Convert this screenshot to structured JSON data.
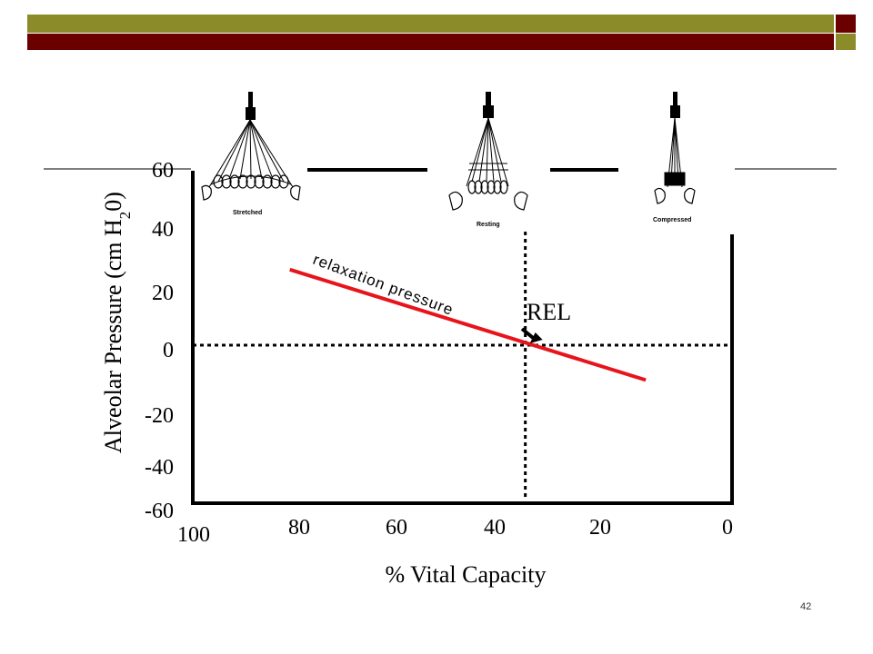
{
  "slide": {
    "page_number": "42",
    "header_colors": {
      "olive": "#8b8b2a",
      "maroon": "#6b0000"
    }
  },
  "illustrations": {
    "stretched_label": "Stretched",
    "resting_label": "Resting",
    "compressed_label": "Compressed"
  },
  "chart_data": {
    "type": "line",
    "xlabel": "% Vital Capacity",
    "ylabel_main": "Alveolar Pressure (cm H",
    "ylabel_sub": "2",
    "ylabel_end": "0)",
    "x_ticks": [
      "100",
      "80",
      "60",
      "40",
      "20",
      "0"
    ],
    "y_ticks": [
      "60",
      "40",
      "20",
      "0",
      "-20",
      "-40",
      "-60"
    ],
    "xlim": [
      100,
      0
    ],
    "ylim": [
      -60,
      60
    ],
    "series": [
      {
        "name": "relaxation pressure",
        "color": "#e8141b",
        "x": [
          82,
          16
        ],
        "y": [
          26,
          -12
        ]
      }
    ],
    "annotations": {
      "curve_label": "relaxation pressure",
      "rel_label": "REL",
      "rel_point": {
        "x": 38,
        "y": 0
      }
    }
  }
}
